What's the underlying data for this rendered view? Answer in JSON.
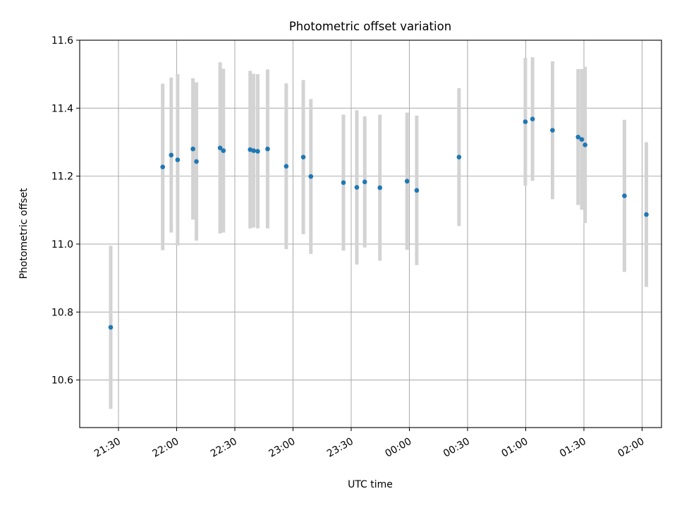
{
  "chart_data": {
    "type": "scatter",
    "title": "Photometric offset variation",
    "xlabel": "UTC time",
    "ylabel": "Photometric offset",
    "x_axis": "time",
    "x_start": "21:10",
    "xlim_minutes": [
      0,
      300
    ],
    "ylim": [
      10.46,
      11.6
    ],
    "xticks": [
      {
        "label": "21:30",
        "minutes": 20
      },
      {
        "label": "22:00",
        "minutes": 50
      },
      {
        "label": "22:30",
        "minutes": 80
      },
      {
        "label": "23:00",
        "minutes": 110
      },
      {
        "label": "23:30",
        "minutes": 140
      },
      {
        "label": "00:00",
        "minutes": 170
      },
      {
        "label": "00:30",
        "minutes": 200
      },
      {
        "label": "01:00",
        "minutes": 230
      },
      {
        "label": "01:30",
        "minutes": 260
      },
      {
        "label": "02:00",
        "minutes": 290
      }
    ],
    "yticks": [
      {
        "label": "10.6",
        "value": 10.6
      },
      {
        "label": "10.8",
        "value": 10.8
      },
      {
        "label": "11.0",
        "value": 11.0
      },
      {
        "label": "11.2",
        "value": 11.2
      },
      {
        "label": "11.4",
        "value": 11.4
      },
      {
        "label": "11.6",
        "value": 11.6
      }
    ],
    "grid": true,
    "point_color": "#1f77b4",
    "errorbar_color": "#d3d3d3",
    "points": [
      {
        "t": 16.0,
        "y": 10.755,
        "err": 0.24
      },
      {
        "t": 42.8,
        "y": 11.227,
        "err": 0.245
      },
      {
        "t": 47.2,
        "y": 11.262,
        "err": 0.228
      },
      {
        "t": 50.5,
        "y": 11.248,
        "err": 0.252
      },
      {
        "t": 58.4,
        "y": 11.28,
        "err": 0.208
      },
      {
        "t": 60.2,
        "y": 11.243,
        "err": 0.233
      },
      {
        "t": 72.4,
        "y": 11.283,
        "err": 0.252
      },
      {
        "t": 74.1,
        "y": 11.275,
        "err": 0.241
      },
      {
        "t": 87.9,
        "y": 11.278,
        "err": 0.232
      },
      {
        "t": 89.7,
        "y": 11.275,
        "err": 0.226
      },
      {
        "t": 91.8,
        "y": 11.273,
        "err": 0.227
      },
      {
        "t": 96.9,
        "y": 11.28,
        "err": 0.234
      },
      {
        "t": 106.5,
        "y": 11.229,
        "err": 0.244
      },
      {
        "t": 115.3,
        "y": 11.256,
        "err": 0.227
      },
      {
        "t": 119.2,
        "y": 11.199,
        "err": 0.228
      },
      {
        "t": 136.0,
        "y": 11.181,
        "err": 0.2
      },
      {
        "t": 142.9,
        "y": 11.167,
        "err": 0.227
      },
      {
        "t": 147.0,
        "y": 11.183,
        "err": 0.193
      },
      {
        "t": 154.8,
        "y": 11.166,
        "err": 0.215
      },
      {
        "t": 168.8,
        "y": 11.185,
        "err": 0.202
      },
      {
        "t": 173.8,
        "y": 11.158,
        "err": 0.22
      },
      {
        "t": 195.6,
        "y": 11.256,
        "err": 0.203
      },
      {
        "t": 229.8,
        "y": 11.36,
        "err": 0.188
      },
      {
        "t": 233.5,
        "y": 11.368,
        "err": 0.182
      },
      {
        "t": 243.8,
        "y": 11.335,
        "err": 0.203
      },
      {
        "t": 257.0,
        "y": 11.315,
        "err": 0.2
      },
      {
        "t": 258.9,
        "y": 11.308,
        "err": 0.207
      },
      {
        "t": 260.6,
        "y": 11.292,
        "err": 0.23
      },
      {
        "t": 280.9,
        "y": 11.142,
        "err": 0.224
      },
      {
        "t": 292.2,
        "y": 11.087,
        "err": 0.213
      }
    ]
  }
}
